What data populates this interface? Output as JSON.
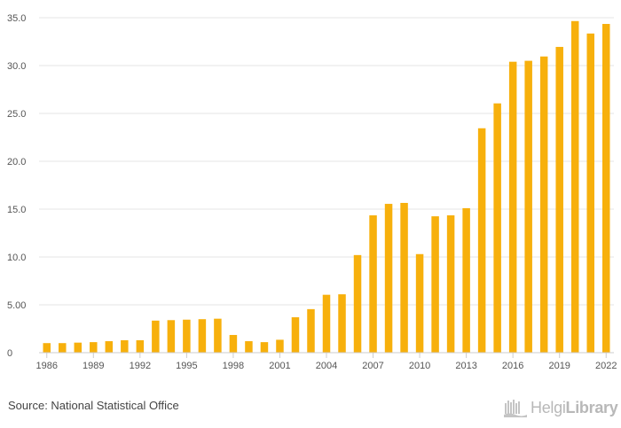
{
  "chart_data": {
    "type": "bar",
    "categories": [
      "1986",
      "1987",
      "1988",
      "1989",
      "1990",
      "1991",
      "1992",
      "1993",
      "1994",
      "1995",
      "1996",
      "1997",
      "1998",
      "1999",
      "2000",
      "2001",
      "2002",
      "2003",
      "2004",
      "2005",
      "2006",
      "2007",
      "2008",
      "2009",
      "2010",
      "2011",
      "2012",
      "2013",
      "2014",
      "2015",
      "2016",
      "2017",
      "2018",
      "2019",
      "2020",
      "2021",
      "2022"
    ],
    "values": [
      1.0,
      1.0,
      1.05,
      1.1,
      1.2,
      1.3,
      1.3,
      3.35,
      3.4,
      3.45,
      3.5,
      3.55,
      1.85,
      1.2,
      1.1,
      1.35,
      3.7,
      4.55,
      6.05,
      6.1,
      10.2,
      14.35,
      15.55,
      15.65,
      10.3,
      14.25,
      14.35,
      15.1,
      23.45,
      26.05,
      30.4,
      30.5,
      30.95,
      31.95,
      34.65,
      33.35,
      34.35
    ],
    "x_tick_labels": [
      "1986",
      "1989",
      "1992",
      "1995",
      "1998",
      "2001",
      "2004",
      "2007",
      "2010",
      "2013",
      "2016",
      "2019",
      "2022"
    ],
    "y_ticks": [
      "0",
      "5.00",
      "10.0",
      "15.0",
      "20.0",
      "25.0",
      "30.0",
      "35.0"
    ],
    "ylim": [
      0,
      35
    ],
    "title": "",
    "xlabel": "",
    "ylabel": "",
    "grid": true,
    "bar_color": "#f7b00c",
    "grid_color": "#e6e6e6",
    "axis_color": "#cccccc"
  },
  "footer": {
    "source": "Source: National Statistical Office",
    "logo_light": "Helgi",
    "logo_bold": "Library"
  }
}
